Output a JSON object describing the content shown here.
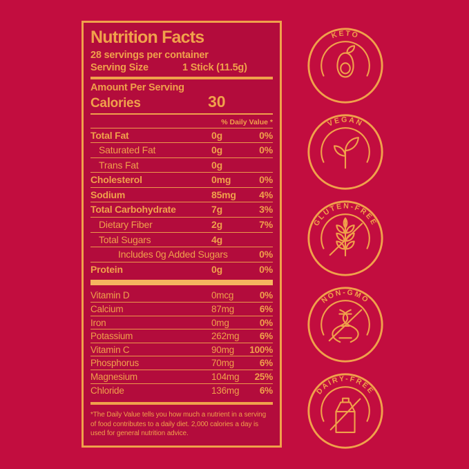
{
  "colors": {
    "background": "#C20D3F",
    "panel": "#B30C3C",
    "gold": "#F0A14B",
    "gold_bright": "#F5B55F"
  },
  "label": {
    "title": "Nutrition Facts",
    "servings_per_container": "28 servings per container",
    "serving_size_label": "Serving Size",
    "serving_size_value": "1 Stick (11.5g)",
    "amount_per_serving": "Amount Per Serving",
    "calories_label": "Calories",
    "calories_value": "30",
    "daily_value_header": "% Daily Value *",
    "nutrients": [
      {
        "name": "Total Fat",
        "amount": "0g",
        "dv": "0%",
        "bold": true,
        "indent": 0
      },
      {
        "name": "Saturated Fat",
        "amount": "0g",
        "dv": "0%",
        "bold": false,
        "indent": 1
      },
      {
        "name": "Trans Fat",
        "amount": "0g",
        "dv": "",
        "bold": false,
        "indent": 1
      },
      {
        "name": "Cholesterol",
        "amount": "0mg",
        "dv": "0%",
        "bold": true,
        "indent": 0
      },
      {
        "name": "Sodium",
        "amount": "85mg",
        "dv": "4%",
        "bold": true,
        "indent": 0
      },
      {
        "name": "Total Carbohydrate",
        "amount": "7g",
        "dv": "3%",
        "bold": true,
        "indent": 0
      },
      {
        "name": "Dietary Fiber",
        "amount": "2g",
        "dv": "7%",
        "bold": false,
        "indent": 1
      },
      {
        "name": "Total Sugars",
        "amount": "4g",
        "dv": "",
        "bold": false,
        "indent": 1
      },
      {
        "name": "Includes 0g Added Sugars",
        "amount": "",
        "dv": "0%",
        "bold": false,
        "indent": 2
      },
      {
        "name": "Protein",
        "amount": "0g",
        "dv": "0%",
        "bold": true,
        "indent": 0
      }
    ],
    "micronutrients": [
      {
        "name": "Vitamin D",
        "amount": "0mcg",
        "dv": "0%"
      },
      {
        "name": "Calcium",
        "amount": "87mg",
        "dv": "6%"
      },
      {
        "name": "Iron",
        "amount": "0mg",
        "dv": "0%"
      },
      {
        "name": "Potassium",
        "amount": "262mg",
        "dv": "6%"
      },
      {
        "name": "Vitamin C",
        "amount": "90mg",
        "dv": "100%"
      },
      {
        "name": "Phosphorus",
        "amount": "70mg",
        "dv": "6%"
      },
      {
        "name": "Magnesium",
        "amount": "104mg",
        "dv": "25%"
      },
      {
        "name": "Chloride",
        "amount": "136mg",
        "dv": "6%"
      }
    ],
    "footnote": "*The Daily Value tells you how much a nutrient in a serving of food contributes to a daily diet. 2,000 calories a day is used for general nutrition advice."
  },
  "badges": [
    {
      "label": "KETO",
      "icon": "avocado-icon"
    },
    {
      "label": "VEGAN",
      "icon": "sprout-icon"
    },
    {
      "label": "GLUTEN-FREE",
      "icon": "wheat-crossed-icon"
    },
    {
      "label": "NON-GMO",
      "icon": "dna-crossed-icon"
    },
    {
      "label": "DAIRY-FREE",
      "icon": "milk-carton-crossed-icon"
    }
  ]
}
